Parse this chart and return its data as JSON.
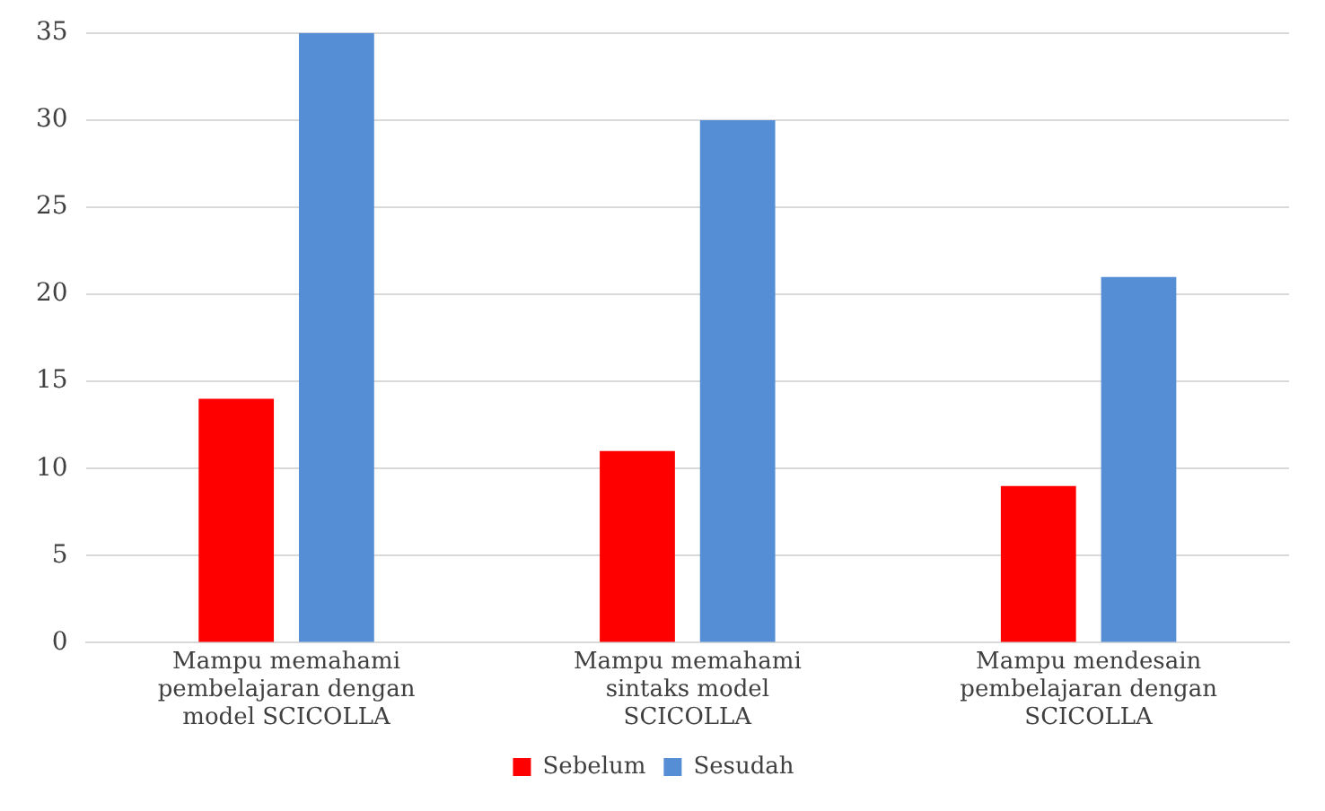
{
  "chart_data": {
    "type": "bar",
    "categories": [
      "Mampu memahami pembelajaran dengan model SCICOLLA",
      "Mampu memahami sintaks model SCICOLLA",
      "Mampu mendesain pembelajaran dengan SCICOLLA"
    ],
    "series": [
      {
        "name": "Sebelum",
        "color": "#ff0000",
        "values": [
          14,
          11,
          9
        ]
      },
      {
        "name": "Sesudah",
        "color": "#558ed5",
        "values": [
          35,
          30,
          21
        ]
      }
    ],
    "ylim": [
      0,
      35
    ],
    "yticks": [
      0,
      5,
      10,
      15,
      20,
      25,
      30,
      35
    ],
    "grid": "y",
    "legend": "bottom"
  }
}
